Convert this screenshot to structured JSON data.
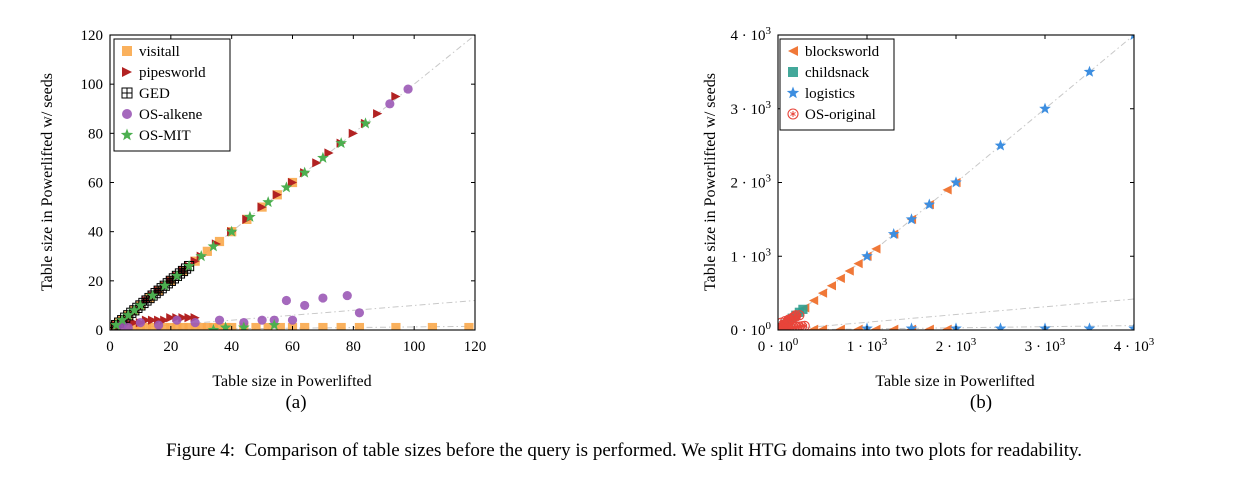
{
  "caption": {
    "label": "Figure 4:",
    "text": "Comparison of table sizes before the query is performed. We split HTG domains into two plots for readability."
  },
  "colors": {
    "visitall": "#f9a94b",
    "pipesworld": "#b22222",
    "GED": "#000000",
    "OS-alkene": "#9b59b6",
    "OS-MIT": "#4caf50",
    "blocksworld": "#f07838",
    "childsnack": "#2f9e8f",
    "logistics": "#3d8ee0",
    "OS-original": "#e8443a",
    "reference": "#c8c8c8"
  },
  "chart_data": [
    {
      "type": "scatter",
      "panel_label": "(a)",
      "xlabel": "Table size in Powerlifted",
      "ylabel": "Table size in Powerlifted w/ seeds",
      "xlim": [
        0,
        120
      ],
      "ylim": [
        0,
        120
      ],
      "x_ticks": [
        "0",
        "20",
        "40",
        "60",
        "80",
        "100",
        "120"
      ],
      "y_ticks": [
        "0",
        "20",
        "40",
        "60",
        "80",
        "100",
        "120"
      ],
      "legend_position": "top-left",
      "reference_lines": [
        {
          "style": "dash-dot",
          "x": [
            0,
            120
          ],
          "y": [
            0,
            120
          ]
        },
        {
          "style": "dash-dot",
          "x": [
            0,
            120
          ],
          "y": [
            0,
            12
          ]
        },
        {
          "style": "dash-dot",
          "x": [
            0,
            120
          ],
          "y": [
            0,
            1.5
          ]
        }
      ],
      "series": [
        {
          "name": "visitall",
          "marker": "square",
          "x": [
            1,
            2,
            3,
            4,
            5,
            6,
            8,
            10,
            12,
            14,
            16,
            18,
            20,
            22,
            24,
            26,
            28,
            30,
            32,
            34,
            36,
            38,
            40,
            44,
            48,
            52,
            56,
            60,
            64,
            70,
            76,
            82,
            94,
            106,
            118,
            1,
            2,
            3,
            4,
            6,
            8,
            10,
            13,
            16,
            20,
            24,
            28,
            32,
            36,
            40,
            45,
            50,
            55,
            60
          ],
          "y": [
            1,
            1,
            1,
            1,
            1,
            1,
            1,
            1,
            1,
            1,
            1,
            1,
            1,
            1,
            1,
            1,
            1,
            1,
            1,
            1,
            1,
            1,
            1,
            1,
            1,
            1,
            1,
            1,
            1,
            1,
            1,
            1,
            1,
            1,
            1,
            1,
            2,
            3,
            4,
            6,
            8,
            10,
            13,
            16,
            20,
            24,
            28,
            32,
            36,
            40,
            45,
            50,
            55,
            60
          ]
        },
        {
          "name": "pipesworld",
          "marker": "triangle-right",
          "x": [
            2,
            4,
            6,
            8,
            10,
            12,
            14,
            16,
            18,
            20,
            22,
            24,
            26,
            28,
            12,
            14,
            16,
            18,
            20,
            22,
            24,
            26,
            28,
            30,
            35,
            40,
            45,
            50,
            55,
            60,
            64,
            68,
            72,
            76,
            80,
            84,
            88,
            94
          ],
          "y": [
            2,
            2,
            3,
            3,
            3,
            4,
            4,
            4,
            4,
            5,
            5,
            5,
            5,
            5,
            12,
            14,
            16,
            18,
            20,
            22,
            24,
            26,
            28,
            30,
            35,
            40,
            45,
            50,
            55,
            60,
            64,
            68,
            72,
            76,
            80,
            84,
            88,
            95
          ]
        },
        {
          "name": "GED",
          "marker": "boxed-plus",
          "x": [
            1,
            2,
            3,
            4,
            5,
            6,
            7,
            8,
            9,
            10,
            11,
            12,
            13,
            14,
            15,
            16,
            17,
            18,
            19,
            20,
            21,
            22,
            23,
            24,
            25,
            26
          ],
          "y": [
            1,
            2,
            3,
            4,
            5,
            6,
            7,
            8,
            9,
            10,
            11,
            12,
            13,
            14,
            15,
            16,
            17,
            18,
            19,
            20,
            21,
            22,
            23,
            24,
            25,
            26
          ]
        },
        {
          "name": "OS-alkene",
          "marker": "circle",
          "x": [
            4,
            6,
            10,
            16,
            22,
            28,
            36,
            44,
            50,
            54,
            58,
            60,
            64,
            70,
            78,
            82,
            92,
            98
          ],
          "y": [
            2,
            1,
            3,
            2,
            4,
            3,
            4,
            3,
            4,
            4,
            12,
            4,
            10,
            13,
            14,
            7,
            92,
            98
          ]
        },
        {
          "name": "OS-MIT",
          "marker": "star",
          "x": [
            2,
            4,
            6,
            8,
            10,
            14,
            18,
            22,
            26,
            30,
            34,
            40,
            46,
            52,
            58,
            64,
            70,
            76,
            84,
            34,
            38,
            44,
            54
          ],
          "y": [
            2,
            4,
            6,
            8,
            10,
            14,
            18,
            22,
            26,
            30,
            34,
            40,
            46,
            52,
            58,
            64,
            70,
            76,
            84,
            0,
            1,
            1,
            2
          ]
        }
      ]
    },
    {
      "type": "scatter",
      "panel_label": "(b)",
      "xlabel": "Table size in Powerlifted",
      "ylabel": "Table size in Powerlifted w/ seeds",
      "xlim": [
        0,
        4000
      ],
      "ylim": [
        0,
        4000
      ],
      "x_ticks": [
        "0 · 10^0",
        "1 · 10^3",
        "2 · 10^3",
        "3 · 10^3",
        "4 · 10^3"
      ],
      "y_ticks": [
        "0 · 10^0",
        "1 · 10^3",
        "2 · 10^3",
        "3 · 10^3",
        "4 · 10^3"
      ],
      "legend_position": "top-left",
      "reference_lines": [
        {
          "style": "dash-dot",
          "x": [
            0,
            4000
          ],
          "y": [
            0,
            4000
          ]
        },
        {
          "style": "dash-dot",
          "x": [
            0,
            4000
          ],
          "y": [
            0,
            420
          ]
        },
        {
          "style": "dash-dot",
          "x": [
            0,
            4000
          ],
          "y": [
            0,
            60
          ]
        }
      ],
      "series": [
        {
          "name": "blocksworld",
          "marker": "triangle-left",
          "x": [
            100,
            200,
            300,
            400,
            500,
            600,
            700,
            800,
            900,
            1000,
            1100,
            1300,
            1500,
            1700,
            1900,
            2000,
            400,
            500,
            700,
            900,
            1100,
            1300,
            1500,
            1700,
            1900
          ],
          "y": [
            100,
            200,
            300,
            400,
            500,
            600,
            700,
            800,
            900,
            1000,
            1100,
            1300,
            1500,
            1700,
            1900,
            2000,
            10,
            10,
            10,
            10,
            10,
            10,
            10,
            10,
            10
          ]
        },
        {
          "name": "childsnack",
          "marker": "square",
          "x": [
            40,
            80,
            120,
            160,
            200,
            240,
            280
          ],
          "y": [
            40,
            80,
            120,
            160,
            200,
            240,
            280
          ]
        },
        {
          "name": "logistics",
          "marker": "star",
          "x": [
            1000,
            1300,
            1500,
            1700,
            2000,
            2500,
            3000,
            3500,
            4000,
            1000,
            1500,
            2000,
            2500,
            3000,
            3500,
            4000
          ],
          "y": [
            1000,
            1300,
            1500,
            1700,
            2000,
            2500,
            3000,
            3500,
            4000,
            20,
            20,
            20,
            20,
            20,
            20,
            20
          ]
        },
        {
          "name": "OS-original",
          "marker": "circled-asterisk",
          "x": [
            20,
            40,
            60,
            80,
            100,
            120,
            140,
            160,
            180,
            200,
            30,
            60,
            90,
            120,
            150,
            180,
            210,
            240,
            270,
            300,
            40,
            80,
            120,
            160,
            200,
            240
          ],
          "y": [
            20,
            40,
            60,
            80,
            100,
            120,
            140,
            160,
            180,
            200,
            10,
            15,
            20,
            25,
            30,
            35,
            40,
            45,
            50,
            55,
            100,
            120,
            140,
            160,
            180,
            200
          ]
        }
      ]
    }
  ]
}
